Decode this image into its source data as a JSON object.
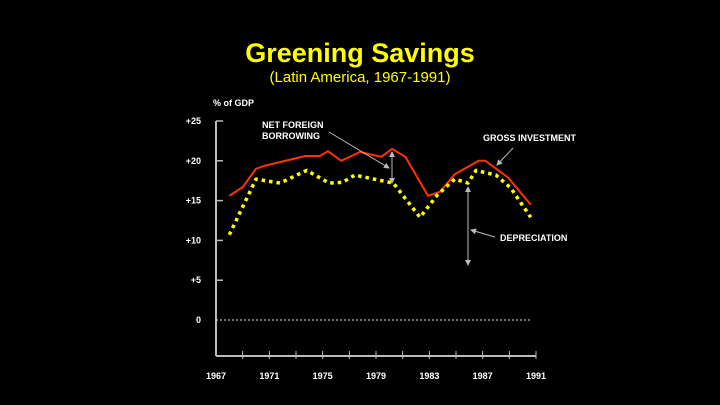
{
  "chart_data": {
    "type": "line",
    "title": "Greening Savings",
    "subtitle": "(Latin America, 1967-1991)",
    "ylabel": "% of GDP",
    "xlabel": "",
    "xlim": [
      1967,
      1991
    ],
    "ylim": [
      0,
      25
    ],
    "x_ticks": [
      "1967",
      "1971",
      "1975",
      "1979",
      "1983",
      "1987",
      "1991"
    ],
    "y_ticks": [
      {
        "value": 25,
        "label": "+25"
      },
      {
        "value": 20,
        "label": "+20"
      },
      {
        "value": 15,
        "label": "+15"
      },
      {
        "value": 10,
        "label": "+10"
      },
      {
        "value": 5,
        "label": "+5"
      },
      {
        "value": 0,
        "label": "0"
      }
    ],
    "grid": false,
    "zero_line": "dashed",
    "series": [
      {
        "name": "GROSS INVESTMENT",
        "color": "#ff3300",
        "style": "solid",
        "x": [
          1968,
          1969,
          1970,
          1970.7,
          1973.7,
          1974.8,
          1975.4,
          1976.4,
          1977.8,
          1979.4,
          1980.2,
          1981.2,
          1982.9,
          1983.8,
          1984.9,
          1986.7,
          1987.2,
          1988.9,
          1990.6
        ],
        "y": [
          15.6,
          16.7,
          19.0,
          19.4,
          20.6,
          20.6,
          21.2,
          20.0,
          21.1,
          20.5,
          21.5,
          20.5,
          15.6,
          16.1,
          18.3,
          20.0,
          20.0,
          17.9,
          14.5
        ]
      },
      {
        "name": "DEPRECIATION",
        "color": "#ffff00",
        "style": "dotted",
        "x": [
          1968,
          1970,
          1971.8,
          1973.8,
          1975.5,
          1976.5,
          1977.4,
          1980.3,
          1982.3,
          1983.6,
          1984.9,
          1985.9,
          1986.5,
          1988,
          1989.1,
          1990.6
        ],
        "y": [
          10.7,
          17.7,
          17.2,
          18.8,
          17.2,
          17.3,
          18.2,
          17.2,
          12.9,
          15.7,
          17.7,
          17.2,
          18.8,
          18.2,
          16.6,
          12.9
        ]
      }
    ],
    "annotations": [
      {
        "text_lines": [
          "NET FOREIGN",
          "BORROWING"
        ]
      },
      {
        "text_lines": [
          "GROSS INVESTMENT"
        ]
      },
      {
        "text_lines": [
          "DEPRECIATION"
        ]
      }
    ]
  }
}
